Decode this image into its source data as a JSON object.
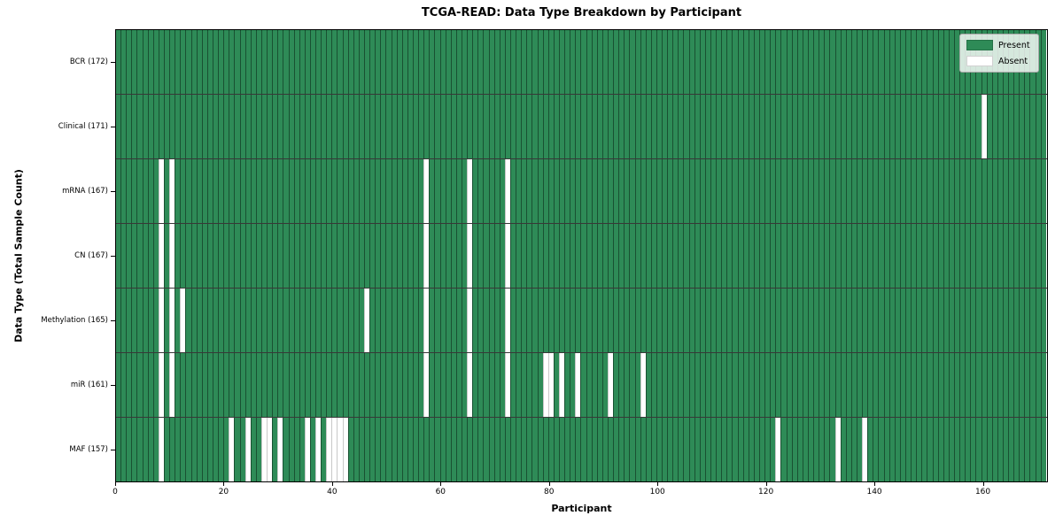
{
  "title": "TCGA-READ: Data Type Breakdown by Participant",
  "xlabel": "Participant",
  "ylabel": "Data Type (Total Sample Count)",
  "colors": {
    "present": "#2e8b57",
    "absent": "#ffffff",
    "cell_edge_dark": "rgba(10,35,20,0.55)",
    "row_separator": "#1a1a1a",
    "legend_background": "#e5ece5"
  },
  "chart_data": {
    "type": "heatmap",
    "n_participants": 172,
    "x_ticks": [
      0,
      20,
      40,
      60,
      80,
      100,
      120,
      140,
      160
    ],
    "x_range": [
      0,
      172
    ],
    "grid": "cell-borders",
    "legend_position": "upper-right",
    "rows": [
      {
        "name": "BCR",
        "label": "BCR (172)",
        "count": 172,
        "absent_participants": []
      },
      {
        "name": "Clinical",
        "label": "Clinical (171)",
        "count": 171,
        "absent_participants": [
          160
        ]
      },
      {
        "name": "mRNA",
        "label": "mRNA (167)",
        "count": 167,
        "absent_participants": [
          8,
          10,
          57,
          65,
          72
        ]
      },
      {
        "name": "CN",
        "label": "CN (167)",
        "count": 167,
        "absent_participants": [
          8,
          10,
          57,
          65,
          72
        ]
      },
      {
        "name": "Methylation",
        "label": "Methylation (165)",
        "count": 165,
        "absent_participants": [
          8,
          10,
          12,
          46,
          57,
          65,
          72
        ]
      },
      {
        "name": "miR",
        "label": "miR (161)",
        "count": 161,
        "absent_participants": [
          8,
          10,
          57,
          65,
          72,
          79,
          80,
          82,
          85,
          91,
          97
        ]
      },
      {
        "name": "MAF",
        "label": "MAF (157)",
        "count": 157,
        "absent_participants": [
          8,
          21,
          24,
          27,
          28,
          30,
          35,
          37,
          39,
          40,
          41,
          42,
          122,
          133,
          138
        ]
      }
    ],
    "legend_entries": [
      {
        "label": "Present",
        "color": "#2e8b57"
      },
      {
        "label": "Absent",
        "color": "#ffffff"
      }
    ]
  }
}
